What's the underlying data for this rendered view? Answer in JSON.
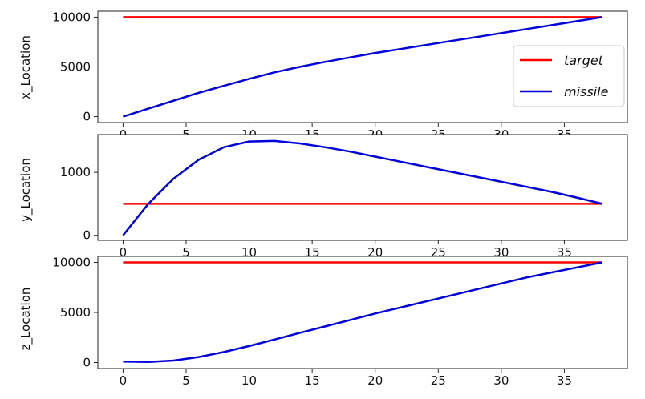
{
  "colors": {
    "target": "#ff0000",
    "missile": "#0000dd",
    "axes": "#222222"
  },
  "legend": {
    "placement": "right of top panel",
    "entries": [
      {
        "label": "target",
        "color": "#ff0000"
      },
      {
        "label": "missile",
        "color": "#0000dd"
      }
    ]
  },
  "chart_data": [
    {
      "type": "line",
      "title": "",
      "xlabel": "",
      "ylabel": "x_Location",
      "xlim": [
        -2,
        40
      ],
      "ylim": [
        -600,
        10600
      ],
      "xticks": [
        0,
        5,
        10,
        15,
        20,
        25,
        30,
        35
      ],
      "yticks": [
        0,
        5000,
        10000
      ],
      "grid": false,
      "series": [
        {
          "name": "target",
          "x": [
            0,
            38
          ],
          "y": [
            10000,
            10000
          ]
        },
        {
          "name": "missile",
          "x": [
            0,
            2,
            4,
            6,
            8,
            10,
            12,
            14,
            16,
            18,
            20,
            22,
            24,
            26,
            28,
            30,
            32,
            34,
            36,
            38
          ],
          "y": [
            0,
            800,
            1600,
            2400,
            3100,
            3800,
            4450,
            5000,
            5500,
            5950,
            6400,
            6800,
            7200,
            7600,
            8000,
            8400,
            8800,
            9200,
            9600,
            10000
          ]
        }
      ]
    },
    {
      "type": "line",
      "title": "",
      "xlabel": "",
      "ylabel": "y_Location",
      "xlim": [
        -2,
        40
      ],
      "ylim": [
        -80,
        1600
      ],
      "xticks": [
        0,
        5,
        10,
        15,
        20,
        25,
        30,
        35
      ],
      "yticks": [
        0,
        1000
      ],
      "grid": false,
      "series": [
        {
          "name": "target",
          "x": [
            0,
            38
          ],
          "y": [
            500,
            500
          ]
        },
        {
          "name": "missile",
          "x": [
            0,
            2,
            4,
            6,
            8,
            10,
            12,
            14,
            16,
            18,
            20,
            22,
            24,
            26,
            28,
            30,
            32,
            34,
            36,
            38
          ],
          "y": [
            0,
            500,
            900,
            1200,
            1400,
            1490,
            1500,
            1460,
            1400,
            1330,
            1250,
            1170,
            1090,
            1010,
            930,
            850,
            770,
            690,
            600,
            500
          ]
        }
      ]
    },
    {
      "type": "line",
      "title": "",
      "xlabel": "",
      "ylabel": "z_Location",
      "xlim": [
        -2,
        40
      ],
      "ylim": [
        -600,
        10600
      ],
      "xticks": [
        0,
        5,
        10,
        15,
        20,
        25,
        30,
        35
      ],
      "yticks": [
        0,
        5000,
        10000
      ],
      "grid": false,
      "series": [
        {
          "name": "target",
          "x": [
            0,
            38
          ],
          "y": [
            10000,
            10000
          ]
        },
        {
          "name": "missile",
          "x": [
            0,
            2,
            4,
            6,
            8,
            10,
            12,
            14,
            16,
            18,
            20,
            22,
            24,
            26,
            28,
            30,
            32,
            34,
            36,
            38
          ],
          "y": [
            100,
            60,
            200,
            550,
            1050,
            1650,
            2300,
            2950,
            3600,
            4250,
            4900,
            5500,
            6100,
            6700,
            7300,
            7900,
            8500,
            9000,
            9500,
            10000
          ]
        }
      ]
    }
  ]
}
